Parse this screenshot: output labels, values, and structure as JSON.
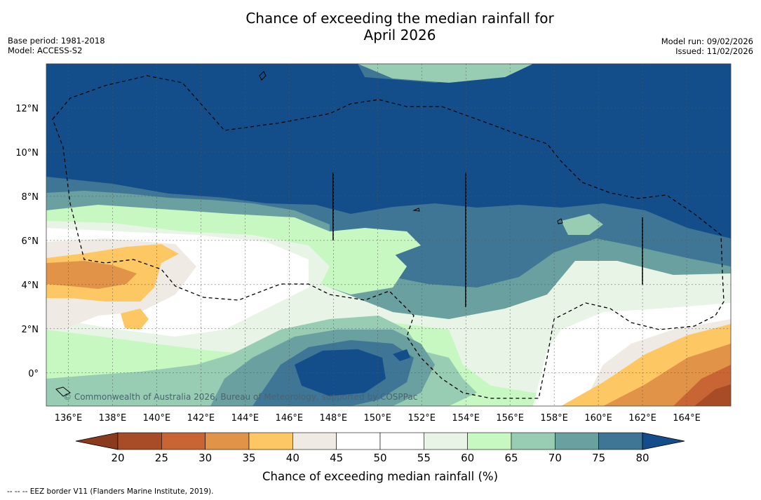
{
  "header": {
    "title_line1": "Chance of exceeding the median rainfall for",
    "title_line2": "April 2026",
    "base_period": "Base period: 1981-2018",
    "model": "Model: ACCESS-S2",
    "model_run": "Model run: 09/02/2026",
    "issued": "Issued: 11/02/2026"
  },
  "map": {
    "lon_range": [
      135,
      166
    ],
    "lat_range": [
      -1.5,
      14
    ],
    "lon_ticks": [
      "136°E",
      "138°E",
      "140°E",
      "142°E",
      "144°E",
      "146°E",
      "148°E",
      "150°E",
      "152°E",
      "154°E",
      "156°E",
      "158°E",
      "160°E",
      "162°E",
      "164°E"
    ],
    "lat_ticks": [
      "12°N",
      "10°N",
      "8°N",
      "6°N",
      "4°N",
      "2°N",
      "0°"
    ],
    "watermark": "© Commonwealth of Australia 2026, Bureau of Meteorology, supported by COSPPac"
  },
  "colorbar": {
    "label": "Chance of exceeding median rainfall (%)",
    "ticks": [
      "20",
      "25",
      "30",
      "35",
      "40",
      "45",
      "50",
      "55",
      "60",
      "65",
      "70",
      "75",
      "80"
    ],
    "colors": {
      "under": "#8c3a1e",
      "bin_20_25": "#a84b27",
      "bin_25_30": "#c96534",
      "bin_30_35": "#e19448",
      "bin_35_40": "#fdc864",
      "bin_40_45": "#efebe4",
      "bin_45_50": "#ffffff",
      "bin_50_55": "#ffffff",
      "bin_55_60": "#e8f5e6",
      "bin_60_65": "#c8f8c2",
      "bin_65_70": "#98cdb4",
      "bin_70_75": "#6aa0a0",
      "bin_75_80": "#3f7696",
      "over": "#134e8a"
    }
  },
  "footer": {
    "eez_note": "--  --  -- EEZ border V11 (Flanders Marine Institute, 2019)."
  }
}
